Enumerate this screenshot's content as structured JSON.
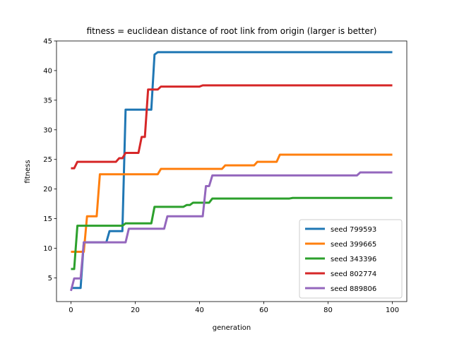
{
  "chart_data": {
    "type": "line",
    "title": "fitness = euclidean distance of root link from origin (larger is better)",
    "xlabel": "generation",
    "ylabel": "fitness",
    "xlim": [
      -4.5,
      104.5
    ],
    "ylim": [
      1,
      45
    ],
    "xticks": [
      0,
      20,
      40,
      60,
      80,
      100
    ],
    "yticks": [
      5,
      10,
      15,
      20,
      25,
      30,
      35,
      40,
      45
    ],
    "grid": false,
    "legend_position": "lower-right",
    "series": [
      {
        "name": "seed 799593",
        "color": "#1f77b4",
        "points": [
          [
            0,
            3.3
          ],
          [
            3,
            3.3
          ],
          [
            3,
            3.3
          ],
          [
            4,
            11
          ],
          [
            11,
            11
          ],
          [
            12,
            12.9
          ],
          [
            16,
            12.9
          ],
          [
            17,
            33.4
          ],
          [
            25,
            33.4
          ],
          [
            26,
            42.7
          ],
          [
            27,
            43.1
          ],
          [
            100,
            43.1
          ]
        ]
      },
      {
        "name": "seed 399665",
        "color": "#ff7f0e",
        "points": [
          [
            0,
            9.4
          ],
          [
            4,
            9.4
          ],
          [
            5,
            15.4
          ],
          [
            8,
            15.4
          ],
          [
            9,
            22.5
          ],
          [
            27,
            22.5
          ],
          [
            28,
            23.4
          ],
          [
            47,
            23.4
          ],
          [
            48,
            24
          ],
          [
            57,
            24
          ],
          [
            58,
            24.6
          ],
          [
            64,
            24.6
          ],
          [
            65,
            25.8
          ],
          [
            100,
            25.8
          ]
        ]
      },
      {
        "name": "seed 343396",
        "color": "#2ca02c",
        "points": [
          [
            0,
            6.5
          ],
          [
            1,
            6.5
          ],
          [
            2,
            13.8
          ],
          [
            16,
            13.8
          ],
          [
            17,
            14.2
          ],
          [
            25,
            14.2
          ],
          [
            26,
            17
          ],
          [
            35,
            17
          ],
          [
            36,
            17.3
          ],
          [
            37,
            17.3
          ],
          [
            38,
            17.7
          ],
          [
            43,
            17.7
          ],
          [
            44,
            18.4
          ],
          [
            68,
            18.4
          ],
          [
            69,
            18.5
          ],
          [
            100,
            18.5
          ]
        ]
      },
      {
        "name": "seed 802774",
        "color": "#d62728",
        "points": [
          [
            0,
            23.5
          ],
          [
            1,
            23.5
          ],
          [
            2,
            24.6
          ],
          [
            14,
            24.6
          ],
          [
            15,
            25.2
          ],
          [
            16,
            25.2
          ],
          [
            17,
            26.1
          ],
          [
            21,
            26.1
          ],
          [
            22,
            28.8
          ],
          [
            23,
            28.8
          ],
          [
            24,
            36.8
          ],
          [
            27,
            36.8
          ],
          [
            28,
            37.3
          ],
          [
            40,
            37.3
          ],
          [
            41,
            37.5
          ],
          [
            100,
            37.5
          ]
        ]
      },
      {
        "name": "seed 889806",
        "color": "#9467bd",
        "points": [
          [
            0,
            2.8
          ],
          [
            1,
            4.9
          ],
          [
            3,
            4.9
          ],
          [
            4,
            11
          ],
          [
            17,
            11
          ],
          [
            18,
            13.3
          ],
          [
            29,
            13.3
          ],
          [
            30,
            15.4
          ],
          [
            41,
            15.4
          ],
          [
            42,
            20.5
          ],
          [
            43,
            20.5
          ],
          [
            44,
            22.3
          ],
          [
            89,
            22.3
          ],
          [
            90,
            22.8
          ],
          [
            100,
            22.8
          ]
        ]
      }
    ]
  }
}
